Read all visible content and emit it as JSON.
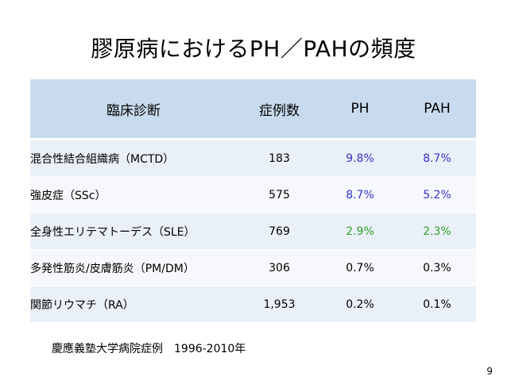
{
  "slide": {
    "title": "膠原病におけるPH／PAHの頻度",
    "footnote": "慶應義塾大学病院症例　1996-2010年",
    "page_number": "9"
  },
  "table": {
    "headers": [
      "臨床診断",
      "症例数",
      "PH",
      "PAH"
    ],
    "rows": [
      {
        "diagnosis": "混合性結合組織病（MCTD）",
        "cases": "183",
        "ph": "9.8%",
        "pah": "8.7%",
        "value_color": "#3333cc"
      },
      {
        "diagnosis": "強皮症（SSc）",
        "cases": "575",
        "ph": "8.7%",
        "pah": "5.2%",
        "value_color": "#3333cc"
      },
      {
        "diagnosis": "全身性エリテマトーデス（SLE）",
        "cases": "769",
        "ph": "2.9%",
        "pah": "2.3%",
        "value_color": "#33a02c"
      },
      {
        "diagnosis": "多発性筋炎/皮膚筋炎（PM/DM）",
        "cases": "306",
        "ph": "0.7%",
        "pah": "0.3%",
        "value_color": "#000000"
      },
      {
        "diagnosis": "関節リウマチ（RA）",
        "cases": "1,953",
        "ph": "0.2%",
        "pah": "0.1%",
        "value_color": "#000000"
      }
    ]
  },
  "colors": {
    "header_background": "#c8dbee",
    "row_background_odd": "#eaf0f7",
    "row_background_even": "#f6f8fb"
  }
}
